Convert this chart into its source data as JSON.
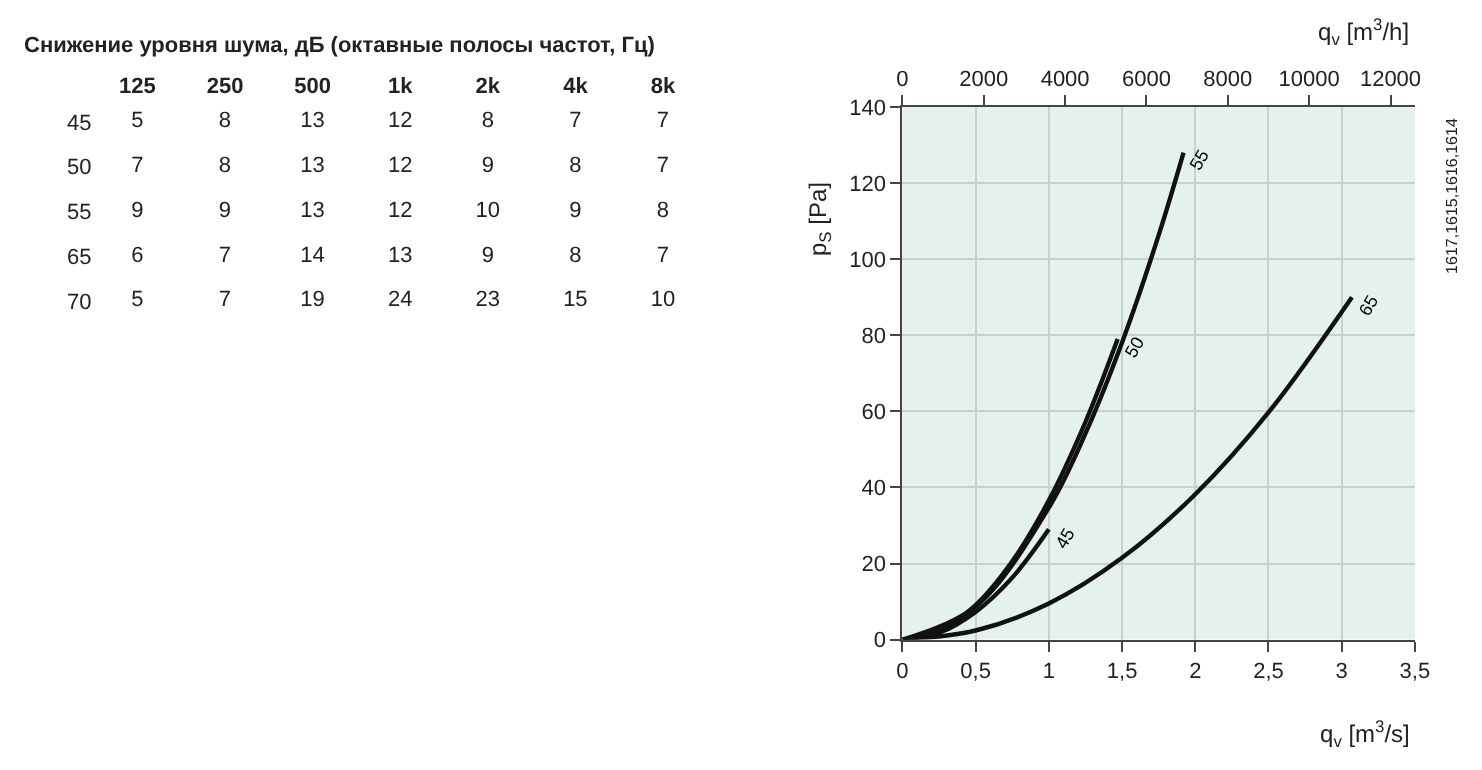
{
  "chart_data": [
    {
      "type": "heatmap",
      "title": "Снижение уровня шума, дБ (октавные полосы частот, Гц)",
      "categories": [
        "125",
        "250",
        "500",
        "1k",
        "2k",
        "4k",
        "8k"
      ],
      "y_categories": [
        "45",
        "50",
        "55",
        "65",
        "70"
      ],
      "cells": [
        [
          5,
          8,
          13,
          12,
          8,
          7,
          7
        ],
        [
          7,
          8,
          13,
          12,
          9,
          8,
          7
        ],
        [
          9,
          9,
          13,
          12,
          10,
          9,
          8
        ],
        [
          6,
          7,
          14,
          13,
          9,
          8,
          7
        ],
        [
          5,
          7,
          19,
          24,
          23,
          15,
          10
        ]
      ],
      "data_labels": true
    },
    {
      "type": "line",
      "xlabel": "q$_{v}$ [m$^{3}$/s]",
      "ylabel": "p$_{S}$ [Pa]",
      "x2label": "q$_{v}$ [m$^{3}$/h]",
      "xlim": [
        0,
        3.5
      ],
      "xticks": [
        0,
        {
          "value": 0.5,
          "label": "0,5"
        },
        1,
        {
          "value": 1.5,
          "label": "1,5"
        },
        2,
        {
          "value": 2.5,
          "label": "2,5"
        },
        3,
        {
          "value": 3.5,
          "label": "3,5"
        }
      ],
      "x2lim": [
        0,
        12600
      ],
      "x2ticks": [
        0,
        2000,
        4000,
        6000,
        8000,
        10000,
        12000
      ],
      "ylim": [
        0,
        140
      ],
      "yticks": [
        0,
        20,
        40,
        60,
        80,
        100,
        120,
        140
      ],
      "grid": true,
      "marker": "none",
      "line_style": "solid",
      "series": [
        {
          "name": "45",
          "color": "#111111",
          "x": [
            0,
            0.25,
            0.5,
            0.75,
            1.0
          ],
          "values": [
            0,
            1.8,
            7.3,
            16.3,
            29
          ]
        },
        {
          "name": "50",
          "color": "#111111",
          "x": [
            0,
            0.25,
            0.5,
            0.75,
            1.0,
            1.25,
            1.47
          ],
          "values": [
            0,
            2.3,
            9.1,
            20.6,
            36.6,
            57.2,
            79
          ]
        },
        {
          "name": "55",
          "color": "#111111",
          "x": [
            0,
            0.5,
            1.0,
            1.25,
            1.5,
            1.75,
            1.92
          ],
          "values": [
            0,
            8.7,
            34.7,
            54.2,
            78.1,
            106.3,
            128
          ]
        },
        {
          "name": "65",
          "color": "#111111",
          "x": [
            0,
            0.5,
            1.0,
            1.5,
            2.0,
            2.5,
            3.07
          ],
          "values": [
            0,
            2.4,
            9.5,
            21.5,
            38.2,
            59.7,
            90
          ]
        }
      ],
      "annotations": [
        "1617,1615,1616,1614"
      ]
    }
  ]
}
